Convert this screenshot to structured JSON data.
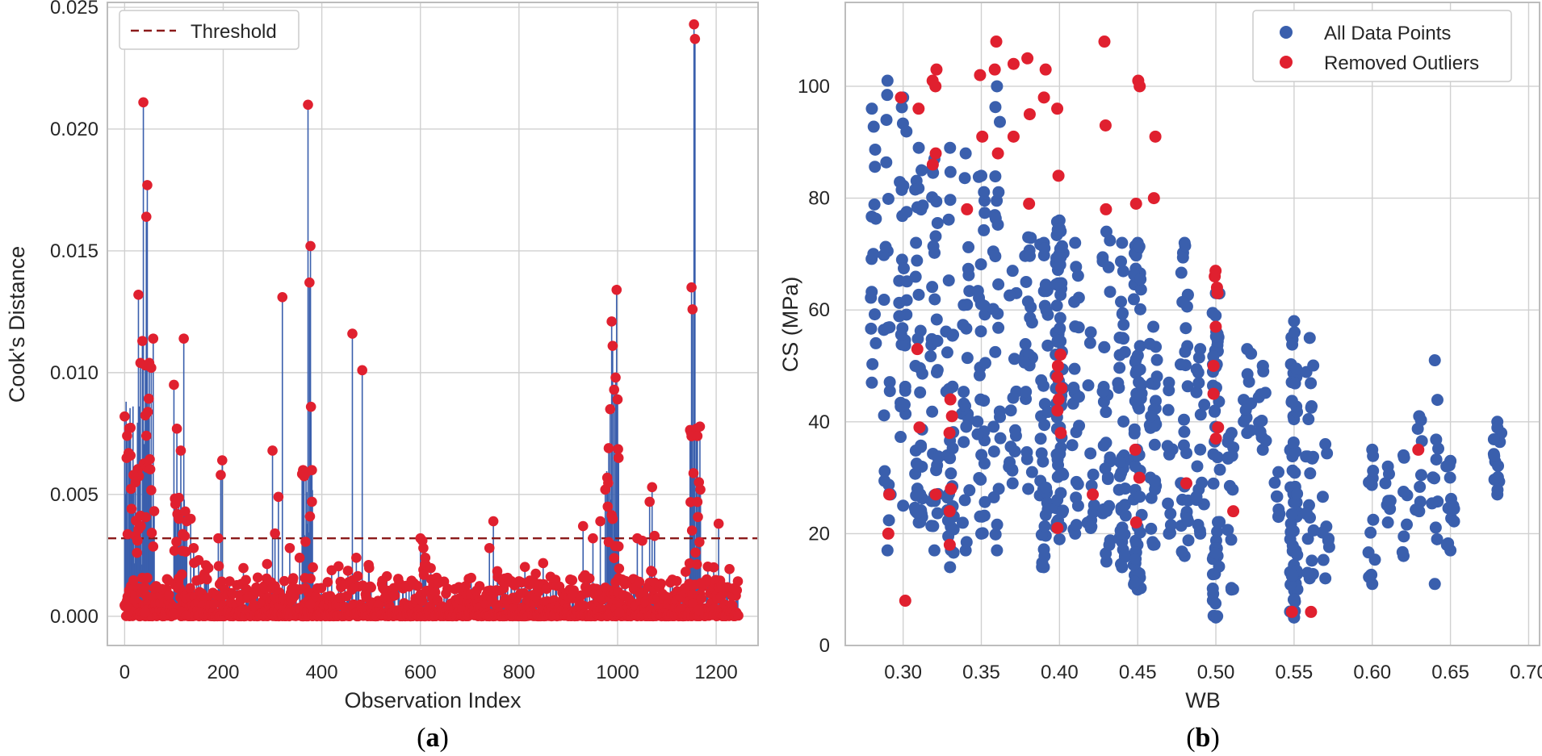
{
  "panels": [
    {
      "open": "(",
      "letter": "a",
      "close": ")"
    },
    {
      "open": "(",
      "letter": "b",
      "close": ")"
    }
  ],
  "chart_data": [
    {
      "type": "stem",
      "xlabel": "Observation Index",
      "ylabel": "Cook's Distance",
      "xlim": [
        -35,
        1285
      ],
      "ylim": [
        -0.0012,
        0.0252
      ],
      "xticks": [
        0,
        200,
        400,
        600,
        800,
        1000,
        1200
      ],
      "yticks": [
        0.0,
        0.005,
        0.01,
        0.015,
        0.02,
        0.025
      ],
      "ytick_labels": [
        "0.000",
        "0.005",
        "0.010",
        "0.015",
        "0.020",
        "0.025"
      ],
      "threshold": 0.0032,
      "legend": [
        {
          "label": "Threshold",
          "style": "dashed",
          "color": "#8b1a1a"
        }
      ],
      "colors": {
        "stem": "#3a5fad",
        "marker": "#e0202f"
      },
      "peaks": [
        [
          0,
          0.0082
        ],
        [
          4,
          0.0065
        ],
        [
          8,
          0.0067
        ],
        [
          12,
          0.0066
        ],
        [
          18,
          0.0058
        ],
        [
          22,
          0.0055
        ],
        [
          26,
          0.0031
        ],
        [
          28,
          0.0132
        ],
        [
          32,
          0.0104
        ],
        [
          36,
          0.0113
        ],
        [
          38,
          0.0211
        ],
        [
          42,
          0.0103
        ],
        [
          44,
          0.0164
        ],
        [
          46,
          0.0177
        ],
        [
          50,
          0.0104
        ],
        [
          54,
          0.0102
        ],
        [
          58,
          0.0114
        ],
        [
          100,
          0.0095
        ],
        [
          106,
          0.0077
        ],
        [
          110,
          0.004
        ],
        [
          114,
          0.0068
        ],
        [
          120,
          0.0114
        ],
        [
          126,
          0.0039
        ],
        [
          134,
          0.004
        ],
        [
          140,
          0.0028
        ],
        [
          150,
          0.0023
        ],
        [
          190,
          0.0032
        ],
        [
          195,
          0.0058
        ],
        [
          198,
          0.0064
        ],
        [
          300,
          0.0068
        ],
        [
          305,
          0.0034
        ],
        [
          312,
          0.0049
        ],
        [
          320,
          0.0131
        ],
        [
          335,
          0.0028
        ],
        [
          355,
          0.0024
        ],
        [
          362,
          0.006
        ],
        [
          368,
          0.0059
        ],
        [
          372,
          0.021
        ],
        [
          375,
          0.0137
        ],
        [
          377,
          0.0152
        ],
        [
          378,
          0.0086
        ],
        [
          380,
          0.0047
        ],
        [
          462,
          0.0116
        ],
        [
          470,
          0.0024
        ],
        [
          482,
          0.0101
        ],
        [
          600,
          0.0032
        ],
        [
          604,
          0.0031
        ],
        [
          606,
          0.0028
        ],
        [
          610,
          0.0024
        ],
        [
          740,
          0.0028
        ],
        [
          748,
          0.0039
        ],
        [
          930,
          0.0037
        ],
        [
          950,
          0.0032
        ],
        [
          965,
          0.0039
        ],
        [
          975,
          0.0052
        ],
        [
          982,
          0.0069
        ],
        [
          985,
          0.0085
        ],
        [
          988,
          0.0121
        ],
        [
          990,
          0.0111
        ],
        [
          993,
          0.0093
        ],
        [
          996,
          0.0098
        ],
        [
          998,
          0.0134
        ],
        [
          1000,
          0.0089
        ],
        [
          1002,
          0.0065
        ],
        [
          1040,
          0.0032
        ],
        [
          1050,
          0.0031
        ],
        [
          1065,
          0.0047
        ],
        [
          1070,
          0.0053
        ],
        [
          1075,
          0.0033
        ],
        [
          1150,
          0.0135
        ],
        [
          1152,
          0.0126
        ],
        [
          1155,
          0.0243
        ],
        [
          1157,
          0.0237
        ],
        [
          1160,
          0.0077
        ],
        [
          1162,
          0.0074
        ],
        [
          1165,
          0.0055
        ],
        [
          1168,
          0.0052
        ],
        [
          1205,
          0.0038
        ]
      ],
      "baseline_note": "plus ~1000 small observations below the threshold"
    },
    {
      "type": "scatter",
      "xlabel": "WB",
      "ylabel": "CS (MPa)",
      "xlim": [
        0.263,
        0.707
      ],
      "ylim": [
        0,
        115
      ],
      "xticks": [
        0.3,
        0.35,
        0.4,
        0.45,
        0.5,
        0.55,
        0.6,
        0.65,
        0.7
      ],
      "xtick_labels": [
        "0.30",
        "0.35",
        "0.40",
        "0.45",
        "0.50",
        "0.55",
        "0.60",
        "0.65",
        "0.70"
      ],
      "yticks": [
        0,
        20,
        40,
        60,
        80,
        100
      ],
      "ytick_labels": [
        "0",
        "20",
        "40",
        "60",
        "80",
        "100"
      ],
      "legend": [
        {
          "label": "All Data Points",
          "color": "#3a5fad"
        },
        {
          "label": "Removed Outliers",
          "color": "#e0202f"
        }
      ],
      "columns": [
        {
          "wb": 0.28,
          "ymin": 47,
          "ymax": 96,
          "n": 14
        },
        {
          "wb": 0.29,
          "ymin": 17,
          "ymax": 101,
          "n": 20
        },
        {
          "wb": 0.3,
          "ymin": 25,
          "ymax": 98,
          "n": 28
        },
        {
          "wb": 0.31,
          "ymin": 22,
          "ymax": 89,
          "n": 36
        },
        {
          "wb": 0.32,
          "ymin": 17,
          "ymax": 87,
          "n": 30
        },
        {
          "wb": 0.33,
          "ymin": 14,
          "ymax": 89,
          "n": 30
        },
        {
          "wb": 0.34,
          "ymin": 17,
          "ymax": 88,
          "n": 22
        },
        {
          "wb": 0.35,
          "ymin": 20,
          "ymax": 84,
          "n": 30
        },
        {
          "wb": 0.36,
          "ymin": 17,
          "ymax": 100,
          "n": 24
        },
        {
          "wb": 0.37,
          "ymin": 29,
          "ymax": 67,
          "n": 14
        },
        {
          "wb": 0.38,
          "ymin": 28,
          "ymax": 73,
          "n": 22
        },
        {
          "wb": 0.39,
          "ymin": 14,
          "ymax": 72,
          "n": 36
        },
        {
          "wb": 0.4,
          "ymin": 19,
          "ymax": 76,
          "n": 70
        },
        {
          "wb": 0.41,
          "ymin": 20,
          "ymax": 72,
          "n": 20
        },
        {
          "wb": 0.42,
          "ymin": 21,
          "ymax": 56,
          "n": 10
        },
        {
          "wb": 0.43,
          "ymin": 15,
          "ymax": 74,
          "n": 26
        },
        {
          "wb": 0.44,
          "ymin": 14,
          "ymax": 72,
          "n": 40
        },
        {
          "wb": 0.45,
          "ymin": 10,
          "ymax": 72,
          "n": 60
        },
        {
          "wb": 0.46,
          "ymin": 18,
          "ymax": 57,
          "n": 26
        },
        {
          "wb": 0.47,
          "ymin": 20,
          "ymax": 47,
          "n": 10
        },
        {
          "wb": 0.48,
          "ymin": 16,
          "ymax": 72,
          "n": 30
        },
        {
          "wb": 0.49,
          "ymin": 20,
          "ymax": 53,
          "n": 16
        },
        {
          "wb": 0.5,
          "ymin": 5,
          "ymax": 63,
          "n": 48
        },
        {
          "wb": 0.51,
          "ymin": 10,
          "ymax": 38,
          "n": 12
        },
        {
          "wb": 0.52,
          "ymin": 38,
          "ymax": 53,
          "n": 10
        },
        {
          "wb": 0.53,
          "ymin": 35,
          "ymax": 50,
          "n": 10
        },
        {
          "wb": 0.54,
          "ymin": 23,
          "ymax": 31,
          "n": 6
        },
        {
          "wb": 0.55,
          "ymin": 5,
          "ymax": 58,
          "n": 60
        },
        {
          "wb": 0.56,
          "ymin": 12,
          "ymax": 55,
          "n": 20
        },
        {
          "wb": 0.57,
          "ymin": 12,
          "ymax": 36,
          "n": 8
        },
        {
          "wb": 0.6,
          "ymin": 11,
          "ymax": 35,
          "n": 12
        },
        {
          "wb": 0.61,
          "ymin": 22,
          "ymax": 32,
          "n": 6
        },
        {
          "wb": 0.62,
          "ymin": 16,
          "ymax": 34,
          "n": 6
        },
        {
          "wb": 0.63,
          "ymin": 24,
          "ymax": 41,
          "n": 8
        },
        {
          "wb": 0.64,
          "ymin": 11,
          "ymax": 51,
          "n": 10
        },
        {
          "wb": 0.65,
          "ymin": 17,
          "ymax": 33,
          "n": 12
        },
        {
          "wb": 0.68,
          "ymin": 27,
          "ymax": 40,
          "n": 12
        }
      ],
      "outliers": [
        [
          0.3,
          98
        ],
        [
          0.31,
          96
        ],
        [
          0.29,
          27
        ],
        [
          0.29,
          20
        ],
        [
          0.3,
          8
        ],
        [
          0.31,
          53
        ],
        [
          0.31,
          39
        ],
        [
          0.32,
          103
        ],
        [
          0.32,
          101
        ],
        [
          0.32,
          100
        ],
        [
          0.32,
          88
        ],
        [
          0.32,
          86
        ],
        [
          0.32,
          27
        ],
        [
          0.33,
          44
        ],
        [
          0.33,
          41
        ],
        [
          0.33,
          38
        ],
        [
          0.33,
          28
        ],
        [
          0.33,
          24
        ],
        [
          0.33,
          18
        ],
        [
          0.34,
          78
        ],
        [
          0.35,
          102
        ],
        [
          0.35,
          91
        ],
        [
          0.36,
          108
        ],
        [
          0.36,
          103
        ],
        [
          0.36,
          88
        ],
        [
          0.37,
          104
        ],
        [
          0.37,
          91
        ],
        [
          0.38,
          105
        ],
        [
          0.38,
          95
        ],
        [
          0.38,
          79
        ],
        [
          0.39,
          103
        ],
        [
          0.39,
          98
        ],
        [
          0.4,
          96
        ],
        [
          0.4,
          84
        ],
        [
          0.4,
          52
        ],
        [
          0.4,
          50
        ],
        [
          0.4,
          48
        ],
        [
          0.4,
          46
        ],
        [
          0.4,
          44
        ],
        [
          0.4,
          42
        ],
        [
          0.4,
          38
        ],
        [
          0.4,
          21
        ],
        [
          0.42,
          27
        ],
        [
          0.43,
          108
        ],
        [
          0.43,
          93
        ],
        [
          0.43,
          78
        ],
        [
          0.45,
          101
        ],
        [
          0.45,
          100
        ],
        [
          0.45,
          79
        ],
        [
          0.45,
          35
        ],
        [
          0.45,
          30
        ],
        [
          0.45,
          22
        ],
        [
          0.46,
          91
        ],
        [
          0.46,
          80
        ],
        [
          0.48,
          29
        ],
        [
          0.5,
          67
        ],
        [
          0.5,
          66
        ],
        [
          0.5,
          64
        ],
        [
          0.5,
          63
        ],
        [
          0.5,
          57
        ],
        [
          0.5,
          50
        ],
        [
          0.5,
          45
        ],
        [
          0.5,
          39
        ],
        [
          0.5,
          37
        ],
        [
          0.51,
          24
        ],
        [
          0.55,
          6
        ],
        [
          0.56,
          6
        ],
        [
          0.63,
          35
        ]
      ]
    }
  ]
}
